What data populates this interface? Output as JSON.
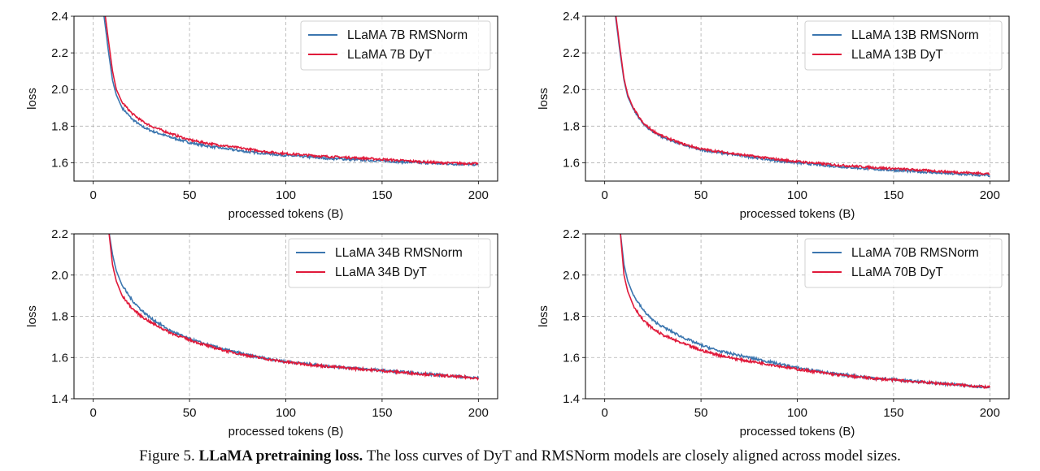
{
  "caption": {
    "prefix": "Figure 5.",
    "bold": "LLaMA pretraining loss.",
    "text": "The loss curves of DyT and RMSNorm models are closely aligned across model sizes."
  },
  "colors": {
    "rmsnorm": "#3b76af",
    "dyt": "#e0193a"
  },
  "chart_data": [
    {
      "type": "line",
      "xlabel": "processed tokens (B)",
      "ylabel": "loss",
      "xlim": [
        -10,
        210
      ],
      "ylim": [
        1.5,
        2.4
      ],
      "xticks": [
        "0",
        "50",
        "100",
        "150",
        "200"
      ],
      "yticks": [
        "1.6",
        "1.8",
        "2.0",
        "2.2",
        "2.4"
      ],
      "grid": true,
      "legend": "top-right",
      "x": [
        5,
        8,
        10,
        12,
        15,
        20,
        25,
        30,
        40,
        50,
        60,
        70,
        80,
        90,
        100,
        120,
        140,
        160,
        180,
        200
      ],
      "series": [
        {
          "name": "LLaMA 7B RMSNorm",
          "key": "rmsnorm",
          "values": [
            2.45,
            2.2,
            2.05,
            1.97,
            1.9,
            1.84,
            1.8,
            1.775,
            1.74,
            1.71,
            1.69,
            1.675,
            1.66,
            1.65,
            1.64,
            1.625,
            1.615,
            1.605,
            1.595,
            1.59
          ]
        },
        {
          "name": "LLaMA 7B DyT",
          "key": "dyt",
          "values": [
            2.5,
            2.26,
            2.1,
            2.0,
            1.93,
            1.87,
            1.83,
            1.8,
            1.76,
            1.725,
            1.705,
            1.69,
            1.675,
            1.66,
            1.65,
            1.635,
            1.625,
            1.612,
            1.6,
            1.595
          ]
        }
      ]
    },
    {
      "type": "line",
      "xlabel": "processed tokens (B)",
      "ylabel": "loss",
      "xlim": [
        -10,
        210
      ],
      "ylim": [
        1.5,
        2.4
      ],
      "xticks": [
        "0",
        "50",
        "100",
        "150",
        "200"
      ],
      "yticks": [
        "1.6",
        "1.8",
        "2.0",
        "2.2",
        "2.4"
      ],
      "grid": true,
      "legend": "top-right",
      "x": [
        5,
        8,
        10,
        12,
        15,
        20,
        25,
        30,
        40,
        50,
        60,
        70,
        80,
        90,
        100,
        120,
        140,
        160,
        180,
        200
      ],
      "series": [
        {
          "name": "LLaMA 13B RMSNorm",
          "key": "rmsnorm",
          "values": [
            2.45,
            2.2,
            2.05,
            1.96,
            1.89,
            1.81,
            1.77,
            1.74,
            1.7,
            1.67,
            1.655,
            1.64,
            1.625,
            1.61,
            1.6,
            1.58,
            1.565,
            1.553,
            1.54,
            1.53
          ]
        },
        {
          "name": "LLaMA 13B DyT",
          "key": "dyt",
          "values": [
            2.47,
            2.22,
            2.06,
            1.97,
            1.895,
            1.815,
            1.775,
            1.745,
            1.705,
            1.675,
            1.66,
            1.645,
            1.632,
            1.618,
            1.607,
            1.588,
            1.574,
            1.562,
            1.55,
            1.54
          ]
        }
      ]
    },
    {
      "type": "line",
      "xlabel": "processed tokens (B)",
      "ylabel": "loss",
      "xlim": [
        -10,
        210
      ],
      "ylim": [
        1.4,
        2.2
      ],
      "xticks": [
        "0",
        "50",
        "100",
        "150",
        "200"
      ],
      "yticks": [
        "1.4",
        "1.6",
        "1.8",
        "2.0",
        "2.2"
      ],
      "grid": true,
      "legend": "top-right",
      "x": [
        8,
        10,
        12,
        15,
        20,
        25,
        30,
        40,
        50,
        60,
        70,
        80,
        90,
        100,
        120,
        140,
        160,
        180,
        200
      ],
      "series": [
        {
          "name": "LLaMA 34B RMSNorm",
          "key": "rmsnorm",
          "values": [
            2.22,
            2.1,
            2.02,
            1.95,
            1.88,
            1.83,
            1.79,
            1.73,
            1.69,
            1.66,
            1.635,
            1.612,
            1.595,
            1.58,
            1.56,
            1.545,
            1.53,
            1.515,
            1.5
          ]
        },
        {
          "name": "LLaMA 34B DyT",
          "key": "dyt",
          "values": [
            2.22,
            2.05,
            1.97,
            1.9,
            1.84,
            1.8,
            1.77,
            1.72,
            1.685,
            1.655,
            1.63,
            1.61,
            1.593,
            1.578,
            1.558,
            1.543,
            1.528,
            1.513,
            1.5
          ]
        }
      ]
    },
    {
      "type": "line",
      "xlabel": "processed tokens (B)",
      "ylabel": "loss",
      "xlim": [
        -10,
        210
      ],
      "ylim": [
        1.4,
        2.2
      ],
      "xticks": [
        "0",
        "50",
        "100",
        "150",
        "200"
      ],
      "yticks": [
        "1.4",
        "1.6",
        "1.8",
        "2.0",
        "2.2"
      ],
      "grid": true,
      "legend": "top-right",
      "x": [
        8,
        10,
        12,
        15,
        20,
        25,
        30,
        40,
        50,
        60,
        70,
        80,
        90,
        100,
        120,
        140,
        160,
        180,
        200
      ],
      "series": [
        {
          "name": "LLaMA 70B RMSNorm",
          "key": "rmsnorm",
          "values": [
            2.22,
            2.05,
            1.97,
            1.9,
            1.83,
            1.78,
            1.75,
            1.7,
            1.66,
            1.63,
            1.61,
            1.59,
            1.57,
            1.55,
            1.52,
            1.5,
            1.485,
            1.47,
            1.455
          ]
        },
        {
          "name": "LLaMA 70B DyT",
          "key": "dyt",
          "values": [
            2.22,
            2.0,
            1.92,
            1.85,
            1.78,
            1.74,
            1.71,
            1.67,
            1.635,
            1.61,
            1.59,
            1.575,
            1.56,
            1.543,
            1.517,
            1.498,
            1.484,
            1.47,
            1.455
          ]
        }
      ]
    }
  ]
}
